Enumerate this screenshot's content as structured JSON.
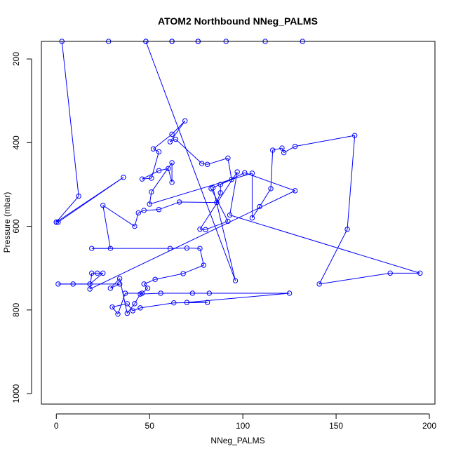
{
  "chart_data": {
    "type": "line",
    "title": "ATOM2 Northbound NNeg_PALMS",
    "xlabel": "NNeg_PALMS",
    "ylabel": "Pressure (mbar)",
    "xlim": [
      -8,
      203
    ],
    "ylim": [
      1025,
      158
    ],
    "y_reversed": true,
    "x_ticks": [
      0,
      50,
      100,
      150,
      200
    ],
    "y_ticks": [
      200,
      400,
      600,
      800,
      1000
    ],
    "grid": false,
    "legend": "none",
    "color": "#0000ff",
    "marker": "open-circle",
    "series": [
      {
        "points": [
          [
            0,
            590
          ],
          [
            1,
            590
          ],
          [
            36,
            483
          ],
          [
            0,
            590
          ],
          [
            12,
            528
          ],
          [
            3,
            158
          ],
          [
            28,
            158
          ],
          [
            48,
            158
          ],
          [
            62,
            158
          ],
          [
            76,
            158
          ],
          [
            91,
            158
          ],
          [
            112,
            158
          ],
          [
            132,
            158
          ],
          [
            76,
            158
          ],
          [
            62,
            158
          ],
          [
            48,
            158
          ],
          [
            96,
            730
          ],
          [
            84,
            508
          ],
          [
            101,
            472
          ],
          [
            128,
            515
          ],
          [
            18,
            750
          ],
          [
            19,
            712
          ],
          [
            22,
            712
          ],
          [
            25,
            712
          ],
          [
            18,
            738
          ],
          [
            9,
            738
          ],
          [
            1,
            738
          ],
          [
            34,
            738
          ],
          [
            29,
            748
          ],
          [
            34,
            725
          ],
          [
            38,
            808
          ],
          [
            42,
            785
          ],
          [
            45,
            762
          ],
          [
            56,
            760
          ],
          [
            73,
            760
          ],
          [
            82,
            760
          ],
          [
            125,
            760
          ],
          [
            70,
            782
          ],
          [
            81,
            782
          ],
          [
            63,
            783
          ],
          [
            45,
            795
          ],
          [
            41,
            802
          ],
          [
            38,
            785
          ],
          [
            30,
            793
          ],
          [
            33,
            810
          ],
          [
            37,
            760
          ],
          [
            46,
            760
          ],
          [
            49,
            748
          ],
          [
            47,
            738
          ],
          [
            53,
            727
          ],
          [
            68,
            713
          ],
          [
            79,
            693
          ],
          [
            77,
            653
          ],
          [
            70,
            652
          ],
          [
            61,
            653
          ],
          [
            19,
            653
          ],
          [
            29,
            653
          ],
          [
            25,
            550
          ],
          [
            42,
            600
          ],
          [
            44,
            568
          ],
          [
            47,
            562
          ],
          [
            55,
            560
          ],
          [
            66,
            542
          ],
          [
            86,
            543
          ],
          [
            88,
            520
          ],
          [
            88,
            500
          ],
          [
            94,
            488
          ],
          [
            92,
            437
          ],
          [
            81,
            452
          ],
          [
            78,
            450
          ],
          [
            64,
            392
          ],
          [
            61,
            398
          ],
          [
            69,
            348
          ],
          [
            62,
            380
          ],
          [
            52,
            415
          ],
          [
            55,
            422
          ],
          [
            51,
            485
          ],
          [
            46,
            487
          ],
          [
            55,
            467
          ],
          [
            60,
            462
          ],
          [
            62,
            495
          ],
          [
            62,
            448
          ],
          [
            51,
            518
          ],
          [
            50,
            547
          ],
          [
            105,
            473
          ],
          [
            105,
            580
          ],
          [
            109,
            553
          ],
          [
            115,
            510
          ],
          [
            116,
            418
          ],
          [
            121,
            413
          ],
          [
            122,
            424
          ],
          [
            128,
            409
          ],
          [
            160,
            383
          ],
          [
            156,
            607
          ],
          [
            141,
            738
          ],
          [
            179,
            712
          ],
          [
            195,
            712
          ],
          [
            93,
            573
          ],
          [
            97,
            470
          ],
          [
            77,
            607
          ],
          [
            80,
            608
          ],
          [
            92,
            588
          ],
          [
            83,
            510
          ]
        ]
      }
    ]
  }
}
